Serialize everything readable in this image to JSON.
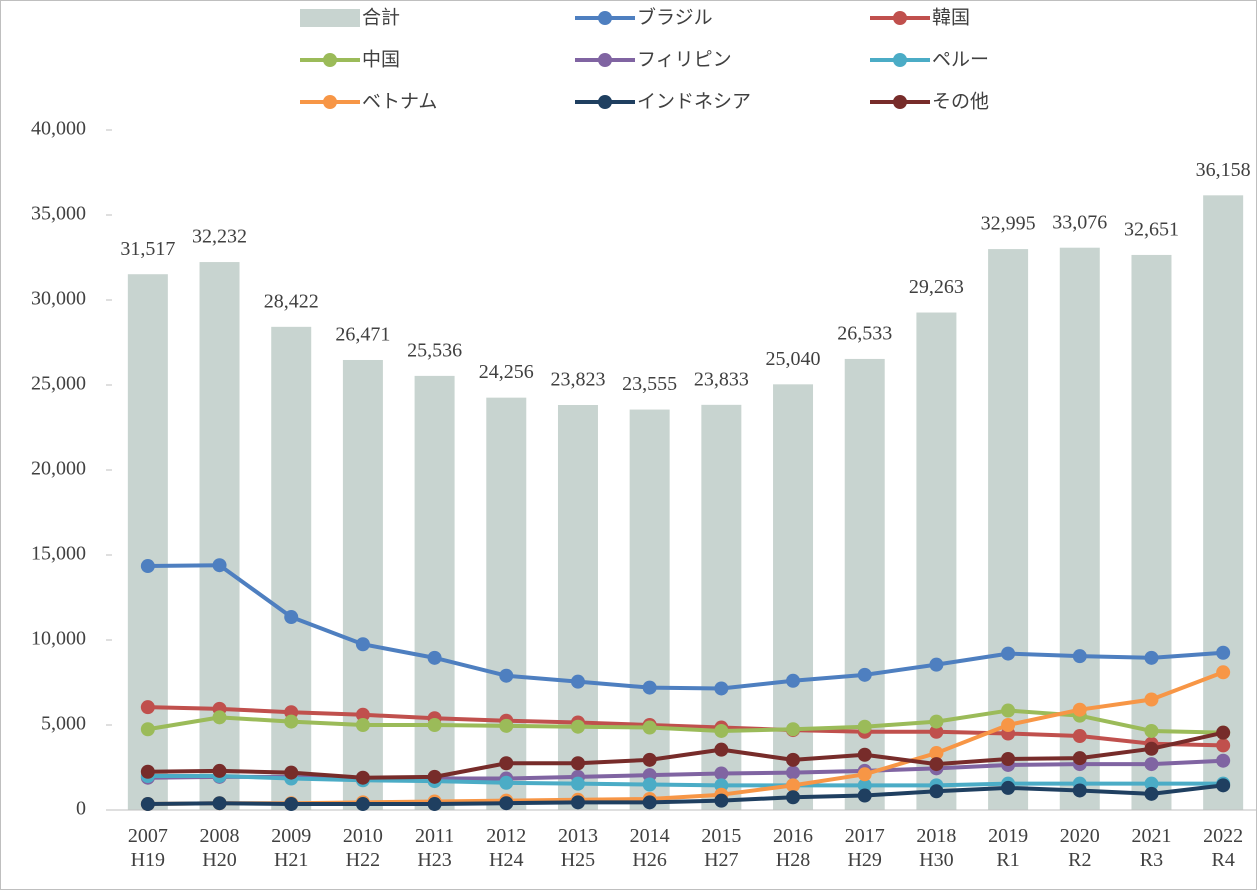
{
  "chart_data": {
    "type": "bar",
    "categories": [
      "2007\nH19",
      "2008\nH20",
      "2009\nH21",
      "2010\nH22",
      "2011\nH23",
      "2012\nH24",
      "2013\nH25",
      "2014\nH26",
      "2015\nH27",
      "2016\nH28",
      "2017\nH29",
      "2018\nH30",
      "2019\nR1",
      "2020\nR2",
      "2021\nR3",
      "2022\nR4"
    ],
    "series": [
      {
        "name": "合計",
        "type": "bar",
        "color": "#c8d4d0",
        "values": [
          31517,
          32232,
          28422,
          26471,
          25536,
          24256,
          23823,
          23555,
          23833,
          25040,
          26533,
          29263,
          32995,
          33076,
          32651,
          36158
        ],
        "value_labels": [
          "31,517",
          "32,232",
          "28,422",
          "26,471",
          "25,536",
          "24,256",
          "23,823",
          "23,555",
          "23,833",
          "25,040",
          "26,533",
          "29,263",
          "32,995",
          "33,076",
          "32,651",
          "36,158"
        ]
      },
      {
        "name": "ブラジル",
        "type": "line",
        "color": "#4e7fc0",
        "values": [
          14350,
          14400,
          11350,
          9750,
          8950,
          7900,
          7550,
          7200,
          7150,
          7600,
          7950,
          8550,
          9200,
          9050,
          8950,
          9250
        ]
      },
      {
        "name": "韓国",
        "type": "line",
        "color": "#c0504d",
        "values": [
          6050,
          5950,
          5750,
          5600,
          5400,
          5250,
          5150,
          5000,
          4850,
          4700,
          4600,
          4600,
          4500,
          4350,
          3900,
          3800
        ]
      },
      {
        "name": "中国",
        "type": "line",
        "color": "#9bbb59",
        "values": [
          4750,
          5450,
          5200,
          5000,
          5000,
          4950,
          4900,
          4850,
          4650,
          4750,
          4900,
          5200,
          5850,
          5550,
          4650,
          4550
        ]
      },
      {
        "name": "フィリピン",
        "type": "line",
        "color": "#8064a2",
        "values": [
          1900,
          1950,
          1950,
          1850,
          1850,
          1850,
          1950,
          2050,
          2150,
          2200,
          2300,
          2450,
          2650,
          2700,
          2700,
          2900
        ]
      },
      {
        "name": "ペルー",
        "type": "line",
        "color": "#4bacc6",
        "values": [
          2000,
          2000,
          1850,
          1750,
          1700,
          1600,
          1550,
          1500,
          1450,
          1450,
          1450,
          1450,
          1550,
          1550,
          1550,
          1550
        ]
      },
      {
        "name": "ベトナム",
        "type": "line",
        "color": "#f79646",
        "values": [
          350,
          400,
          400,
          450,
          500,
          550,
          600,
          650,
          900,
          1450,
          2100,
          3350,
          5000,
          5900,
          6500,
          8100
        ]
      },
      {
        "name": "インドネシア",
        "type": "line",
        "color": "#1f3f60",
        "values": [
          350,
          400,
          350,
          350,
          350,
          400,
          450,
          450,
          550,
          750,
          850,
          1100,
          1300,
          1150,
          950,
          1450
        ]
      },
      {
        "name": "その他",
        "type": "line",
        "color": "#772c2a",
        "values": [
          2250,
          2300,
          2200,
          1900,
          1950,
          2750,
          2750,
          2950,
          3550,
          2950,
          3250,
          2700,
          3000,
          3050,
          3600,
          4550
        ]
      }
    ],
    "ylim": [
      0,
      40000
    ],
    "yticks": [
      0,
      {
        "value": 5000,
        "label": "5,000"
      },
      {
        "value": 10000,
        "label": "10,000"
      },
      {
        "value": 15000,
        "label": "15,000"
      },
      {
        "value": 20000,
        "label": "20,000"
      },
      {
        "value": 25000,
        "label": "25,000"
      },
      {
        "value": 30000,
        "label": "30,000"
      },
      {
        "value": 35000,
        "label": "35,000"
      },
      {
        "value": 40000,
        "label": "40,000"
      }
    ],
    "grid": false,
    "legend": "top"
  }
}
